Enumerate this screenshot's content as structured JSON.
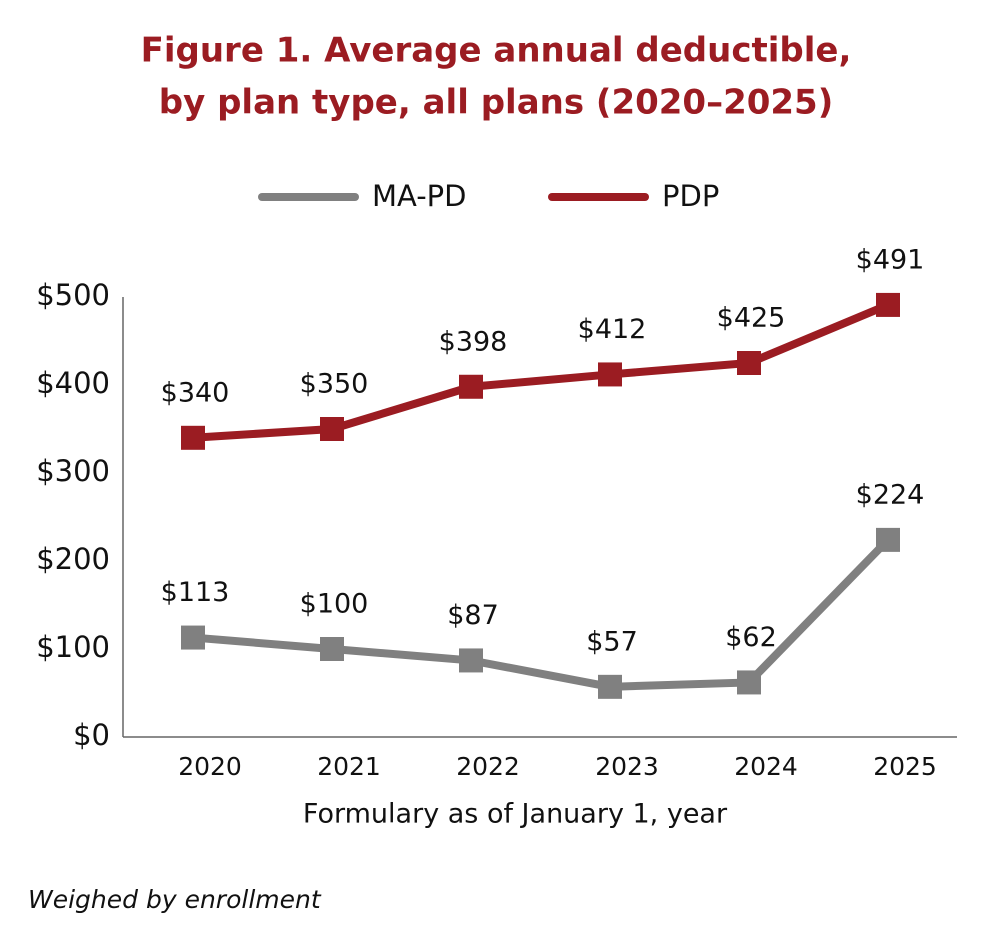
{
  "chart_data": {
    "type": "line",
    "title": [
      "Figure 1. Average annual deductible,",
      "by plan type, all plans (2020–2025)"
    ],
    "x_label": "Formulary as of January 1, year",
    "note": "Weighed by enrollment",
    "categories": [
      "2020",
      "2021",
      "2022",
      "2023",
      "2024",
      "2025"
    ],
    "series": [
      {
        "name": "MA-PD",
        "color": "#808080",
        "values": [
          113,
          100,
          87,
          57,
          62,
          224
        ],
        "value_labels": [
          "$113",
          "$100",
          "$87",
          "$57",
          "$62",
          "$224"
        ]
      },
      {
        "name": "PDP",
        "color": "#9b1c22",
        "values": [
          340,
          350,
          398,
          412,
          425,
          491
        ],
        "value_labels": [
          "$340",
          "$350",
          "$398",
          "$412",
          "$425",
          "$491"
        ]
      }
    ],
    "ylim": [
      0,
      500
    ],
    "yticks": [
      {
        "value": 0,
        "label": "$0"
      },
      {
        "value": 100,
        "label": "$100"
      },
      {
        "value": 200,
        "label": "$200"
      },
      {
        "value": 300,
        "label": "$300"
      },
      {
        "value": 400,
        "label": "$400"
      },
      {
        "value": 500,
        "label": "$500"
      }
    ],
    "legend": "top",
    "grid": false
  }
}
